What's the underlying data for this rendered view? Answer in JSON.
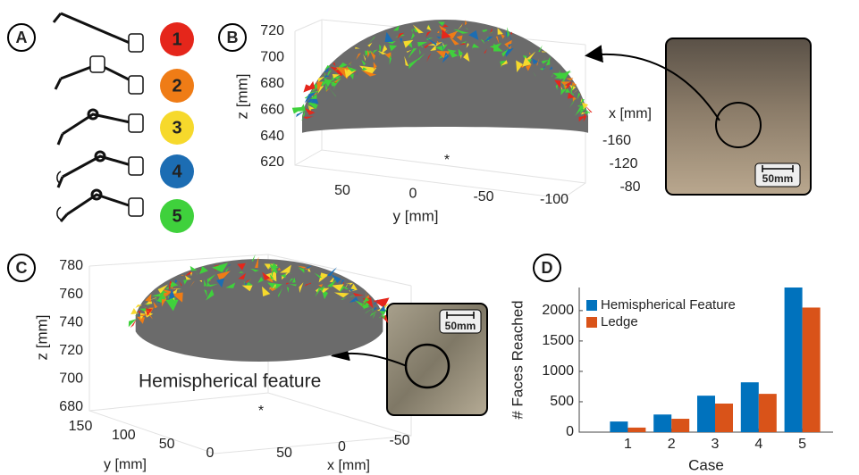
{
  "panel_labels": [
    "A",
    "B",
    "C",
    "D"
  ],
  "cases": {
    "labels": [
      "1",
      "2",
      "3",
      "4",
      "5"
    ],
    "colors": [
      "#e5261b",
      "#ef7c16",
      "#f6d92c",
      "#1c6db3",
      "#3fd13c"
    ]
  },
  "panel_b": {
    "zlabel": "z [mm]",
    "zticks": [
      620,
      640,
      660,
      680,
      700,
      720
    ],
    "zlim": [
      620,
      720
    ],
    "ylabel": "y [mm]",
    "yticks": [
      50,
      0,
      -50,
      -100
    ],
    "ylim": [
      50,
      -100
    ],
    "xlabel": "x [mm]",
    "xticks": [
      -160,
      -120,
      -80
    ],
    "xlim": [
      -160,
      -80
    ],
    "marker": "*",
    "scale_label": "50mm"
  },
  "panel_c": {
    "zlabel": "z [mm]",
    "zticks": [
      680,
      700,
      720,
      740,
      760,
      780
    ],
    "zlim": [
      680,
      780
    ],
    "ylabel": "y [mm]",
    "yticks": [
      150,
      100,
      50,
      0
    ],
    "ylim": [
      150,
      0
    ],
    "xlabel": "x [mm]",
    "xticks": [
      50,
      0,
      -50
    ],
    "xlim": [
      50,
      -50
    ],
    "marker": "*",
    "annotation": "Hemispherical feature",
    "scale_label": "50mm"
  },
  "chart_data": {
    "type": "bar",
    "xlabel": "Case",
    "ylabel": "# Faces Reached",
    "categories": [
      "1",
      "2",
      "3",
      "4",
      "5"
    ],
    "series": [
      {
        "name": "Hemispherical Feature",
        "color": "#0072bd",
        "values": [
          175,
          290,
          600,
          820,
          2380
        ]
      },
      {
        "name": "Ledge",
        "color": "#d95319",
        "values": [
          75,
          220,
          470,
          630,
          2050
        ]
      }
    ],
    "ylim": [
      0,
      2380
    ],
    "yticks": [
      0,
      500,
      1000,
      1500,
      2000
    ],
    "legend": "upper left"
  }
}
